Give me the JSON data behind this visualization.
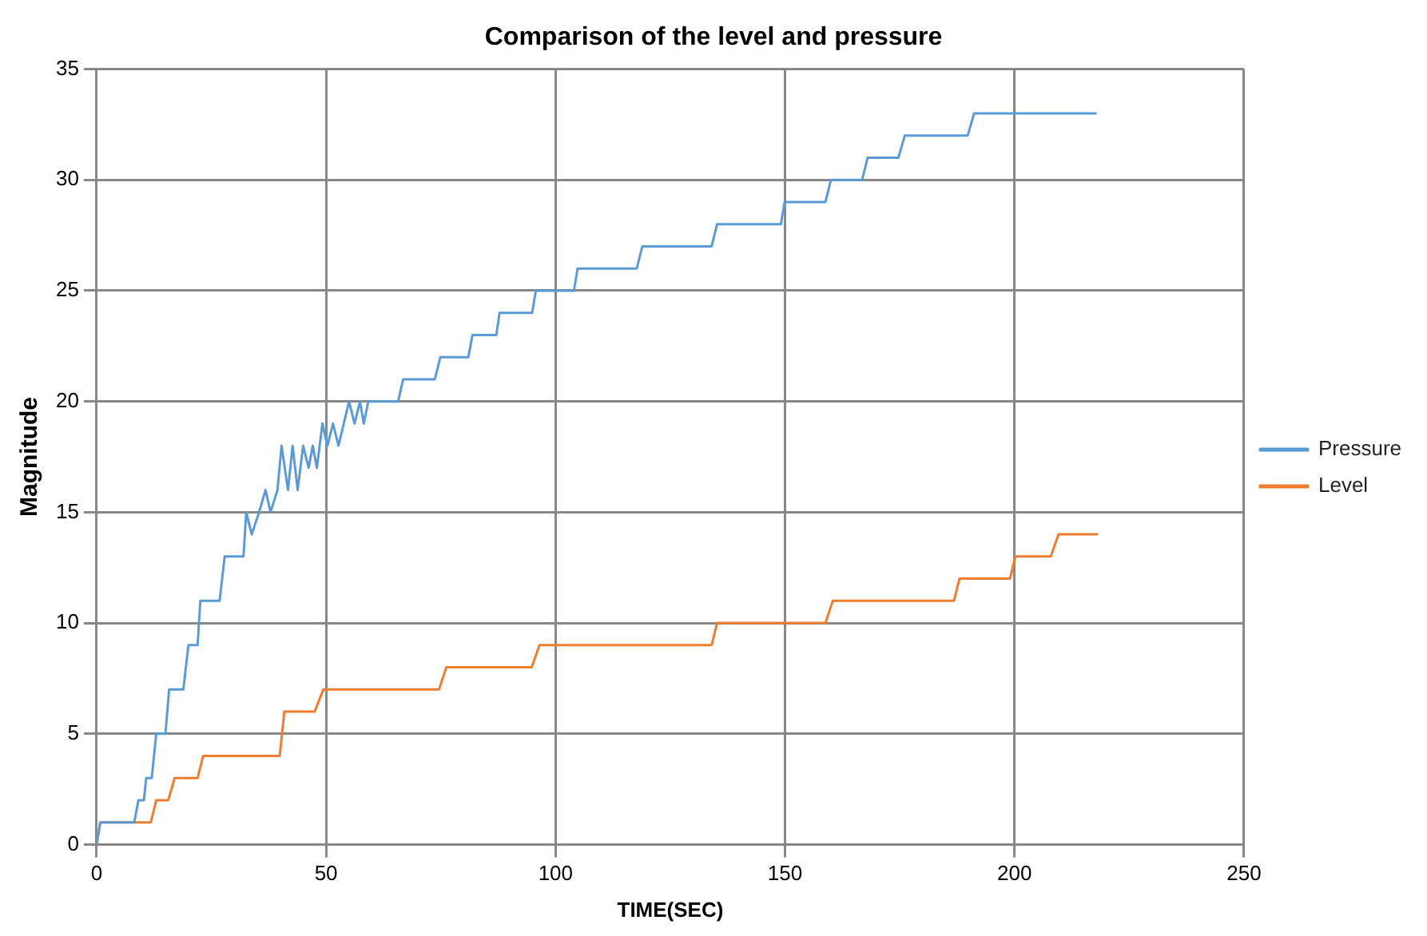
{
  "chart_data": {
    "type": "line",
    "title": "Comparison of the level and pressure",
    "xlabel": "TIME(SEC)",
    "ylabel": "Magnitude",
    "xlim": [
      0,
      250
    ],
    "xticks": [
      0,
      50,
      100,
      150,
      200,
      250
    ],
    "ylim": [
      0,
      35
    ],
    "yticks": [
      0,
      5,
      10,
      15,
      20,
      25,
      30,
      35
    ],
    "grid": true,
    "legend": "right",
    "marker": "none",
    "line_style": "solid",
    "series": [
      {
        "name": "Pressure",
        "color": "#5b9bd5",
        "x": [
          0,
          0.8,
          8.2,
          9.1,
          10.3,
          10.8,
          12,
          13,
          15,
          15.8,
          18.9,
          20,
          22,
          22.6,
          26.8,
          27.9,
          32,
          32.6,
          33.8,
          35.4,
          36.8,
          37.9,
          39.4,
          40.3,
          41.7,
          42.7,
          43.8,
          45,
          46.2,
          47.1,
          48,
          49.2,
          50.3,
          51.5,
          52.7,
          55,
          56.2,
          57.4,
          58.2,
          59.2,
          65.7,
          66.8,
          73.7,
          74.9,
          81,
          81.9,
          87.1,
          87.8,
          94.9,
          95.7,
          104,
          104.8,
          117.7,
          118.9,
          134,
          135.2,
          149.1,
          149.9,
          158.8,
          160,
          166.8,
          168,
          174.7,
          176.1,
          189.8,
          191.2,
          217.9
        ],
        "values": [
          0,
          1,
          1,
          2,
          2,
          3,
          3,
          5,
          5,
          7,
          7,
          9,
          9,
          11,
          11,
          13,
          13,
          15,
          14,
          15,
          16,
          15,
          16,
          18,
          16,
          18,
          16,
          18,
          17,
          18,
          17,
          19,
          18,
          19,
          18,
          20,
          19,
          20,
          19,
          20,
          20,
          21,
          21,
          22,
          22,
          23,
          23,
          24,
          24,
          25,
          25,
          26,
          26,
          27,
          27,
          28,
          28,
          29,
          29,
          30,
          30,
          31,
          31,
          32,
          32,
          33,
          33
        ]
      },
      {
        "name": "Level",
        "color": "#ed7d31",
        "x": [
          0,
          0.8,
          11.8,
          13,
          15.6,
          17,
          22,
          23.2,
          39.9,
          40.9,
          47.5,
          49.4,
          74.6,
          76.2,
          94.8,
          96.5,
          134,
          135.2,
          158.8,
          160.4,
          186.8,
          188,
          199,
          200.2,
          207.9,
          209.6,
          218.2
        ],
        "values": [
          0,
          1,
          1,
          2,
          2,
          3,
          3,
          4,
          4,
          6,
          6,
          7,
          7,
          8,
          8,
          9,
          9,
          10,
          10,
          11,
          11,
          12,
          12,
          13,
          13,
          14,
          14
        ]
      }
    ]
  }
}
